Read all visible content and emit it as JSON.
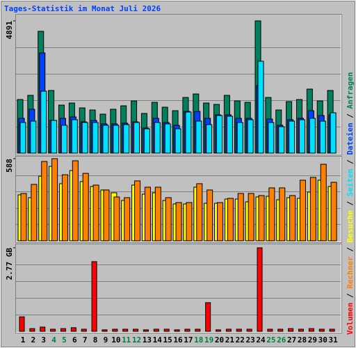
{
  "title": "Tages-Statistik im Monat Juli 2026",
  "legend_separator": " / ",
  "chart_data": [
    {
      "type": "bar",
      "ylim": [
        0,
        4891
      ],
      "yticks": [
        4891
      ],
      "series": [
        {
          "name": "Anfragen",
          "color": "#00805c",
          "values": [
            1982,
            2137,
            4505,
            2317,
            1776,
            1853,
            1673,
            1596,
            1442,
            1622,
            1750,
            1931,
            1467,
            1879,
            1699,
            1570,
            2059,
            2188,
            1853,
            1802,
            2137,
            1931,
            1879,
            4891,
            2059,
            1596,
            1905,
            1982,
            2368,
            1931,
            2317
          ]
        },
        {
          "name": "Dateien",
          "color": "#0040ff",
          "values": [
            1287,
            1622,
            3707,
            1210,
            1287,
            1339,
            1158,
            1210,
            1081,
            1081,
            1107,
            1158,
            927,
            1287,
            1133,
            1030,
            1545,
            1545,
            1287,
            1416,
            1416,
            1287,
            1287,
            2497,
            1261,
            1030,
            1236,
            1287,
            1570,
            1390,
            1416
          ]
        },
        {
          "name": "Seiten",
          "color": "#00e0ff",
          "values": [
            1133,
            1184,
            2291,
            1210,
            1030,
            1236,
            1133,
            1133,
            1030,
            1030,
            1055,
            1133,
            901,
            1133,
            1081,
            901,
            1519,
            1184,
            1055,
            1390,
            1364,
            1133,
            1236,
            3398,
            1133,
            978,
            1184,
            1236,
            1287,
            1184,
            1493
          ]
        }
      ]
    },
    {
      "type": "bar",
      "ylim": [
        0,
        588
      ],
      "yticks": [
        588
      ],
      "series": [
        {
          "name": "Besuche",
          "color": "#ffff00",
          "values": [
            329,
            309,
            463,
            533,
            409,
            503,
            424,
            389,
            364,
            344,
            289,
            399,
            334,
            344,
            289,
            264,
            264,
            384,
            269,
            269,
            299,
            299,
            279,
            314,
            319,
            294,
            309,
            304,
            349,
            434,
            389
          ]
        },
        {
          "name": "Rechner",
          "color": "#ff8000",
          "values": [
            339,
            404,
            568,
            588,
            473,
            573,
            483,
            399,
            364,
            314,
            309,
            429,
            384,
            384,
            309,
            274,
            274,
            409,
            364,
            274,
            304,
            339,
            339,
            324,
            379,
            379,
            324,
            434,
            454,
            548,
            419
          ]
        }
      ]
    },
    {
      "type": "bar",
      "ylim": [
        0,
        2.77
      ],
      "yticks": [
        {
          "value": 2.77,
          "label": "2.77 GB"
        }
      ],
      "categories": [
        "1",
        "2",
        "3",
        "4",
        "5",
        "6",
        "7",
        "8",
        "9",
        "10",
        "11",
        "12",
        "13",
        "14",
        "15",
        "16",
        "17",
        "18",
        "19",
        "20",
        "21",
        "22",
        "23",
        "24",
        "25",
        "26",
        "27",
        "28",
        "29",
        "30",
        "31"
      ],
      "category_colors": [
        "#000000",
        "#000000",
        "#000000",
        "#008040",
        "#008040",
        "#000000",
        "#000000",
        "#000000",
        "#000000",
        "#000000",
        "#008040",
        "#008040",
        "#000000",
        "#000000",
        "#000000",
        "#000000",
        "#000000",
        "#008040",
        "#008040",
        "#000000",
        "#000000",
        "#000000",
        "#000000",
        "#000000",
        "#008040",
        "#008040",
        "#000000",
        "#000000",
        "#000000",
        "#000000",
        "#000000"
      ],
      "series": [
        {
          "name": "Volumen",
          "color": "#ff0000",
          "values": [
            0.48,
            0.09,
            0.14,
            0.07,
            0.09,
            0.12,
            0.07,
            2.31,
            0.05,
            0.07,
            0.07,
            0.07,
            0.05,
            0.07,
            0.07,
            0.05,
            0.07,
            0.07,
            0.95,
            0.05,
            0.07,
            0.07,
            0.07,
            2.77,
            0.07,
            0.07,
            0.09,
            0.07,
            0.09,
            0.07,
            0.07
          ]
        }
      ]
    }
  ]
}
